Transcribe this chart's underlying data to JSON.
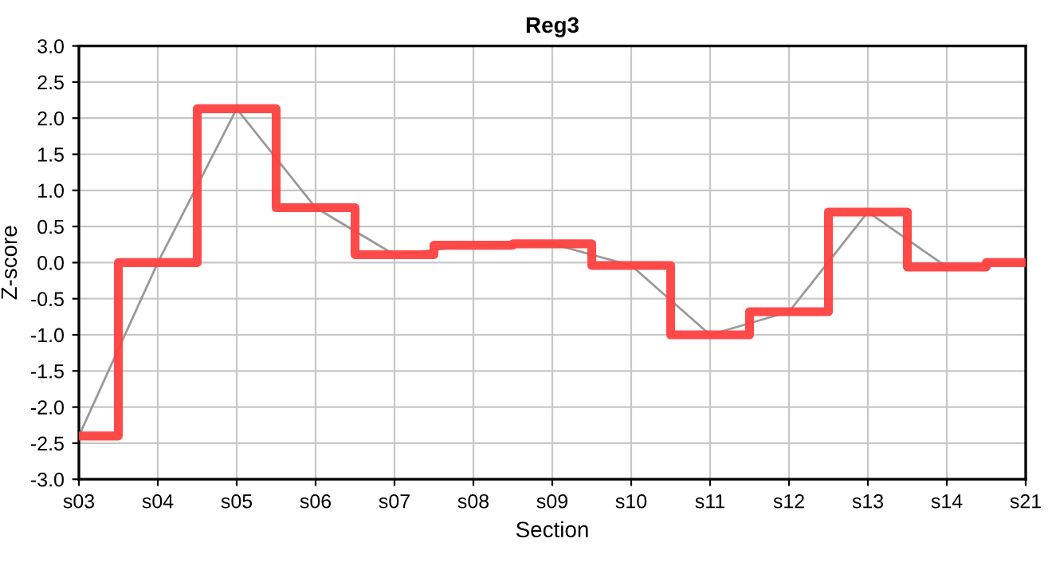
{
  "chart_data": {
    "type": "step",
    "title": "Reg3",
    "xlabel": "Section",
    "ylabel": "Z-score",
    "categories": [
      "s03",
      "s04",
      "s05",
      "s06",
      "s07",
      "s08",
      "s09",
      "s10",
      "s11",
      "s12",
      "s13",
      "s14",
      "s21"
    ],
    "series": [
      {
        "color": "#ff4040",
        "values": [
          -2.4,
          0.0,
          2.13,
          0.76,
          0.11,
          0.24,
          0.26,
          -0.04,
          -1.0,
          -0.68,
          0.7,
          -0.06,
          0.0
        ]
      },
      {
        "type": "line",
        "color": "#999999",
        "values": [
          -2.4,
          0.0,
          2.13,
          0.76,
          0.11,
          0.24,
          0.26,
          -0.04,
          -1.0,
          -0.68,
          0.7,
          -0.06,
          0.0
        ]
      }
    ],
    "ylim": [
      -3.0,
      3.0
    ],
    "yticks": [
      {
        "value": -3.0,
        "label": "-3.0"
      },
      {
        "value": -2.5,
        "label": "-2.5"
      },
      {
        "value": -2.0,
        "label": "-2.0"
      },
      {
        "value": -1.5,
        "label": "-1.5"
      },
      {
        "value": -1.0,
        "label": "-1.0"
      },
      {
        "value": -0.5,
        "label": "-0.5"
      },
      {
        "value": 0.0,
        "label": "0.0"
      },
      {
        "value": 0.5,
        "label": "0.5"
      },
      {
        "value": 1.0,
        "label": "1.0"
      },
      {
        "value": 1.5,
        "label": "1.5"
      },
      {
        "value": 2.0,
        "label": "2.0"
      },
      {
        "value": 2.5,
        "label": "2.5"
      },
      {
        "value": 3.0,
        "label": "3.0"
      }
    ],
    "grid": true,
    "legend": false
  }
}
